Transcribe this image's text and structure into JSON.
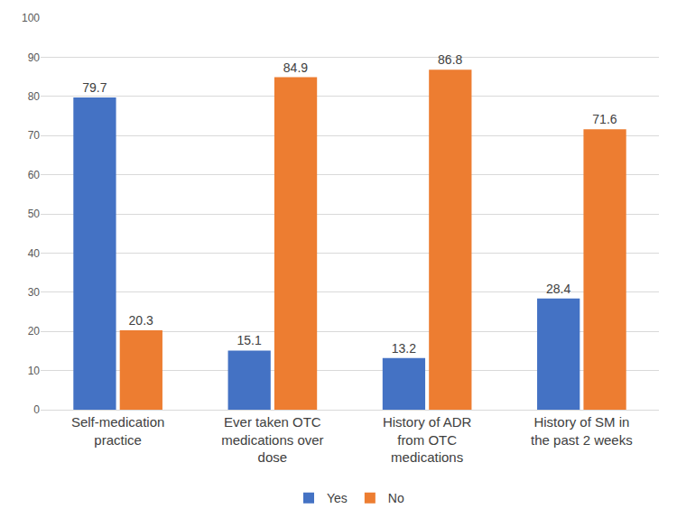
{
  "chart_data": {
    "type": "bar",
    "categories": [
      "Self-medication practice",
      "Ever taken OTC medications over dose",
      "History of ADR from OTC medications",
      "History of SM in the past 2 weeks"
    ],
    "series": [
      {
        "name": "Yes",
        "color": "#4472c4",
        "values": [
          79.7,
          15.1,
          13.2,
          28.4
        ]
      },
      {
        "name": "No",
        "color": "#ed7d31",
        "values": [
          20.3,
          84.9,
          86.8,
          71.6
        ]
      }
    ],
    "ylim": [
      0,
      100
    ],
    "yticks": [
      0,
      10,
      20,
      30,
      40,
      50,
      60,
      70,
      80,
      90,
      100
    ],
    "grid": true,
    "legend": "bottom",
    "data_labels": true
  }
}
